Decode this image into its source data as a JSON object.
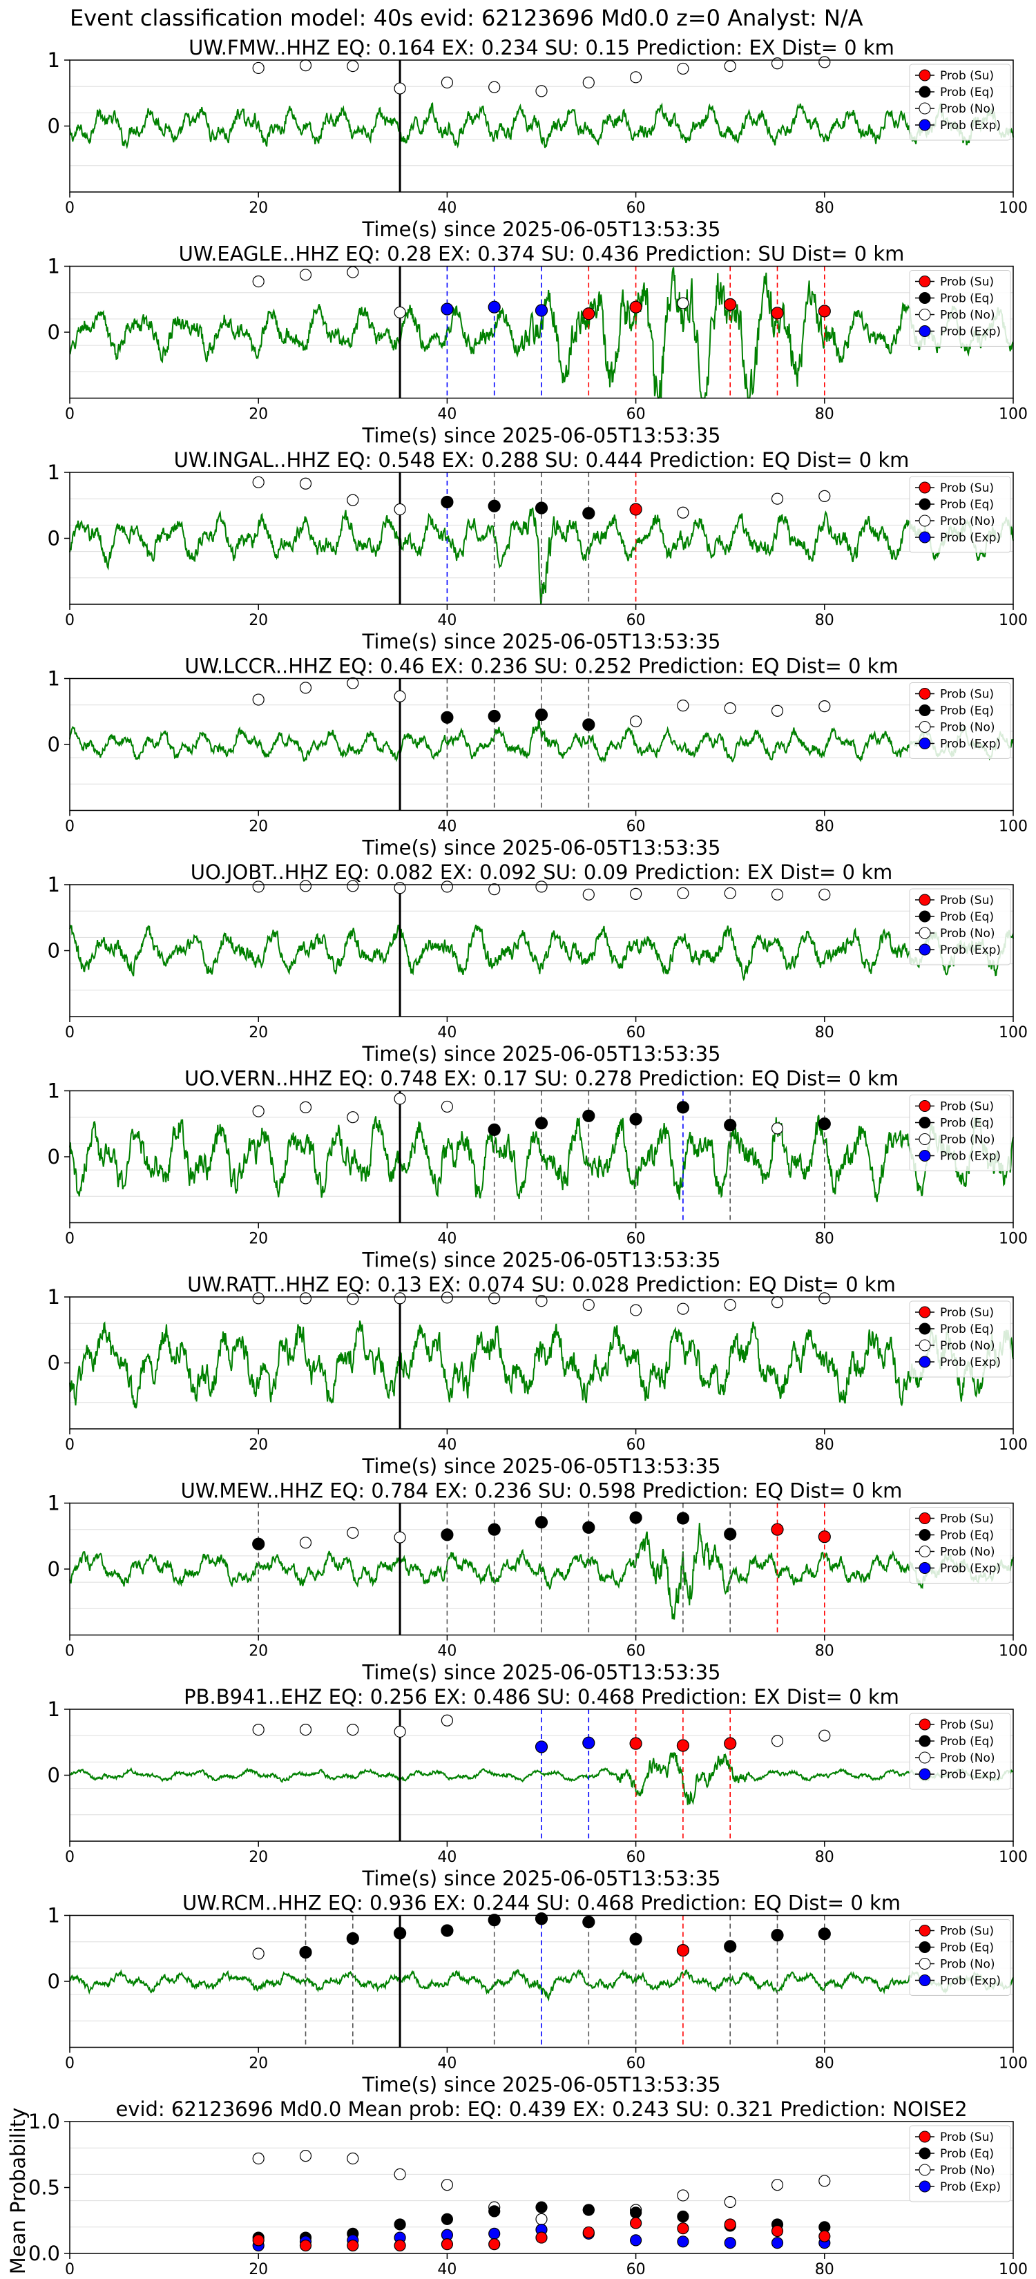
{
  "figure": {
    "suptitle": "Event classification model: 40s evid: 62123696 Md0.0 z=0 Analyst: N/A",
    "xlabel": "Time(s) since 2025-06-05T13:53:35",
    "legend_labels": [
      "Prob (Su)",
      "Prob (Eq)",
      "Prob (No)",
      "Prob (Exp)"
    ],
    "colors": {
      "waveform": "#008000",
      "su": "#ff0000",
      "eq": "#000000",
      "no": "#ffffff",
      "exp": "#0000ff",
      "pick_line": "#000000",
      "grid": "#dddddd"
    }
  },
  "chart_data": [
    {
      "type": "line",
      "title": "UW.FMW..HHZ   EQ: 0.164   EX: 0.234   SU: 0.15    Prediction: EX    Dist= 0 km",
      "xlim": [
        0,
        100
      ],
      "ylim": [
        -1,
        1
      ],
      "xticks": [
        0,
        20,
        40,
        60,
        80,
        100
      ],
      "yticks": [
        0,
        1
      ],
      "pick_time": 35,
      "x": [
        20,
        25,
        30,
        35,
        40,
        45,
        50,
        55,
        60,
        65,
        70,
        75,
        80
      ],
      "no": [
        0.88,
        0.92,
        0.91,
        0.57,
        0.66,
        0.59,
        0.53,
        0.66,
        0.74,
        0.87,
        0.91,
        0.95,
        0.97
      ],
      "markers": [],
      "win_lines": []
    },
    {
      "type": "line",
      "title": "UW.EAGLE..HHZ   EQ: 0.28   EX: 0.374   SU: 0.436    Prediction: SU    Dist= 0 km",
      "xlim": [
        0,
        100
      ],
      "ylim": [
        -1,
        1
      ],
      "xticks": [
        0,
        20,
        40,
        60,
        80,
        100
      ],
      "yticks": [
        0,
        1
      ],
      "pick_time": 35,
      "x": [
        20,
        25,
        30,
        35,
        40,
        45,
        50,
        55,
        60,
        65,
        70,
        75,
        80
      ],
      "no": [
        0.77,
        0.87,
        0.91,
        0.3,
        null,
        null,
        null,
        null,
        null,
        0.44,
        null,
        null,
        null
      ],
      "markers": [
        {
          "x": 40,
          "y": 0.35,
          "c": "exp"
        },
        {
          "x": 45,
          "y": 0.38,
          "c": "exp"
        },
        {
          "x": 50,
          "y": 0.33,
          "c": "exp"
        },
        {
          "x": 55,
          "y": 0.28,
          "c": "su"
        },
        {
          "x": 60,
          "y": 0.38,
          "c": "su"
        },
        {
          "x": 70,
          "y": 0.42,
          "c": "su"
        },
        {
          "x": 75,
          "y": 0.29,
          "c": "su"
        },
        {
          "x": 80,
          "y": 0.32,
          "c": "su"
        }
      ],
      "win_lines": [
        {
          "x": 40,
          "c": "exp"
        },
        {
          "x": 45,
          "c": "exp"
        },
        {
          "x": 50,
          "c": "exp"
        },
        {
          "x": 55,
          "c": "su"
        },
        {
          "x": 60,
          "c": "su"
        },
        {
          "x": 70,
          "c": "su"
        },
        {
          "x": 75,
          "c": "su"
        },
        {
          "x": 80,
          "c": "su"
        }
      ]
    },
    {
      "type": "line",
      "title": "UW.INGAL..HHZ   EQ: 0.548   EX: 0.288   SU: 0.444    Prediction: EQ    Dist= 0 km",
      "xlim": [
        0,
        100
      ],
      "ylim": [
        -1,
        1
      ],
      "xticks": [
        0,
        20,
        40,
        60,
        80,
        100
      ],
      "yticks": [
        0,
        1
      ],
      "pick_time": 35,
      "x": [
        20,
        25,
        30,
        35,
        40,
        45,
        50,
        55,
        60,
        65,
        70,
        75,
        80
      ],
      "no": [
        0.85,
        0.83,
        0.58,
        0.44,
        null,
        null,
        null,
        null,
        null,
        0.39,
        null,
        0.6,
        0.64
      ],
      "markers": [
        {
          "x": 40,
          "y": 0.55,
          "c": "eq"
        },
        {
          "x": 45,
          "y": 0.49,
          "c": "eq"
        },
        {
          "x": 50,
          "y": 0.46,
          "c": "eq"
        },
        {
          "x": 55,
          "y": 0.38,
          "c": "eq"
        },
        {
          "x": 60,
          "y": 0.44,
          "c": "su"
        }
      ],
      "win_lines": [
        {
          "x": 40,
          "c": "exp"
        },
        {
          "x": 45,
          "c": "eq"
        },
        {
          "x": 50,
          "c": "eq"
        },
        {
          "x": 55,
          "c": "eq"
        },
        {
          "x": 60,
          "c": "su"
        }
      ]
    },
    {
      "type": "line",
      "title": "UW.LCCR..HHZ   EQ: 0.46   EX: 0.236   SU: 0.252    Prediction: EQ    Dist= 0 km",
      "xlim": [
        0,
        100
      ],
      "ylim": [
        -1,
        1
      ],
      "xticks": [
        0,
        20,
        40,
        60,
        80,
        100
      ],
      "yticks": [
        0,
        1
      ],
      "pick_time": 35,
      "x": [
        20,
        25,
        30,
        35,
        40,
        45,
        50,
        55,
        60,
        65,
        70,
        75,
        80
      ],
      "no": [
        0.68,
        0.86,
        0.93,
        0.73,
        null,
        null,
        null,
        null,
        0.35,
        0.59,
        0.55,
        0.51,
        0.58
      ],
      "markers": [
        {
          "x": 40,
          "y": 0.41,
          "c": "eq"
        },
        {
          "x": 45,
          "y": 0.43,
          "c": "eq"
        },
        {
          "x": 50,
          "y": 0.45,
          "c": "eq"
        },
        {
          "x": 55,
          "y": 0.3,
          "c": "eq"
        }
      ],
      "win_lines": [
        {
          "x": 40,
          "c": "eq"
        },
        {
          "x": 45,
          "c": "eq"
        },
        {
          "x": 50,
          "c": "eq"
        },
        {
          "x": 55,
          "c": "eq"
        }
      ]
    },
    {
      "type": "line",
      "title": "UO.JOBT..HHZ   EQ: 0.082   EX: 0.092   SU: 0.09    Prediction: EX    Dist= 0 km",
      "xlim": [
        0,
        100
      ],
      "ylim": [
        -1,
        1
      ],
      "xticks": [
        0,
        20,
        40,
        60,
        80,
        100
      ],
      "yticks": [
        0,
        1
      ],
      "pick_time": 35,
      "x": [
        20,
        25,
        30,
        35,
        40,
        45,
        50,
        55,
        60,
        65,
        70,
        75,
        80
      ],
      "no": [
        0.97,
        0.98,
        0.98,
        0.95,
        0.97,
        0.93,
        0.97,
        0.85,
        0.86,
        0.87,
        0.87,
        0.85,
        0.85
      ],
      "markers": [],
      "win_lines": []
    },
    {
      "type": "line",
      "title": "UO.VERN..HHZ   EQ: 0.748   EX: 0.17   SU: 0.278    Prediction: EQ    Dist= 0 km",
      "xlim": [
        0,
        100
      ],
      "ylim": [
        -1,
        1
      ],
      "xticks": [
        0,
        20,
        40,
        60,
        80,
        100
      ],
      "yticks": [
        0,
        1
      ],
      "pick_time": 35,
      "x": [
        20,
        25,
        30,
        35,
        40,
        45,
        50,
        55,
        60,
        65,
        70,
        75,
        80
      ],
      "no": [
        0.69,
        0.75,
        0.6,
        0.88,
        0.76,
        null,
        null,
        null,
        null,
        null,
        null,
        0.43,
        null
      ],
      "markers": [
        {
          "x": 45,
          "y": 0.41,
          "c": "eq"
        },
        {
          "x": 50,
          "y": 0.51,
          "c": "eq"
        },
        {
          "x": 55,
          "y": 0.62,
          "c": "eq"
        },
        {
          "x": 60,
          "y": 0.57,
          "c": "eq"
        },
        {
          "x": 65,
          "y": 0.75,
          "c": "eq"
        },
        {
          "x": 70,
          "y": 0.48,
          "c": "eq"
        },
        {
          "x": 80,
          "y": 0.5,
          "c": "eq"
        }
      ],
      "win_lines": [
        {
          "x": 45,
          "c": "eq"
        },
        {
          "x": 50,
          "c": "eq"
        },
        {
          "x": 55,
          "c": "eq"
        },
        {
          "x": 60,
          "c": "eq"
        },
        {
          "x": 65,
          "c": "exp"
        },
        {
          "x": 70,
          "c": "eq"
        },
        {
          "x": 80,
          "c": "eq"
        }
      ]
    },
    {
      "type": "line",
      "title": "UW.RATT..HHZ   EQ: 0.13   EX: 0.074   SU: 0.028    Prediction: EQ    Dist= 0 km",
      "xlim": [
        0,
        100
      ],
      "ylim": [
        -1,
        1
      ],
      "xticks": [
        0,
        20,
        40,
        60,
        80,
        100
      ],
      "yticks": [
        0,
        1
      ],
      "pick_time": 35,
      "x": [
        20,
        25,
        30,
        35,
        40,
        45,
        50,
        55,
        60,
        65,
        70,
        75,
        80
      ],
      "no": [
        0.98,
        0.98,
        0.97,
        0.98,
        0.99,
        0.98,
        0.94,
        0.88,
        0.8,
        0.82,
        0.88,
        0.92,
        0.98
      ],
      "markers": [],
      "win_lines": []
    },
    {
      "type": "line",
      "title": "UW.MEW..HHZ   EQ: 0.784   EX: 0.236   SU: 0.598    Prediction: EQ    Dist= 0 km",
      "xlim": [
        0,
        100
      ],
      "ylim": [
        -1,
        1
      ],
      "xticks": [
        0,
        20,
        40,
        60,
        80,
        100
      ],
      "yticks": [
        0,
        1
      ],
      "pick_time": 35,
      "x": [
        20,
        25,
        30,
        35,
        40,
        45,
        50,
        55,
        60,
        65,
        70,
        75,
        80
      ],
      "no": [
        null,
        0.4,
        0.55,
        0.48,
        null,
        null,
        null,
        null,
        null,
        null,
        null,
        null,
        null
      ],
      "markers": [
        {
          "x": 20,
          "y": 0.38,
          "c": "eq"
        },
        {
          "x": 40,
          "y": 0.52,
          "c": "eq"
        },
        {
          "x": 45,
          "y": 0.6,
          "c": "eq"
        },
        {
          "x": 50,
          "y": 0.71,
          "c": "eq"
        },
        {
          "x": 55,
          "y": 0.63,
          "c": "eq"
        },
        {
          "x": 60,
          "y": 0.78,
          "c": "eq"
        },
        {
          "x": 65,
          "y": 0.77,
          "c": "eq"
        },
        {
          "x": 70,
          "y": 0.53,
          "c": "eq"
        },
        {
          "x": 75,
          "y": 0.6,
          "c": "su"
        },
        {
          "x": 80,
          "y": 0.49,
          "c": "su"
        }
      ],
      "win_lines": [
        {
          "x": 20,
          "c": "eq"
        },
        {
          "x": 40,
          "c": "eq"
        },
        {
          "x": 45,
          "c": "eq"
        },
        {
          "x": 50,
          "c": "eq"
        },
        {
          "x": 55,
          "c": "eq"
        },
        {
          "x": 60,
          "c": "eq"
        },
        {
          "x": 65,
          "c": "eq"
        },
        {
          "x": 70,
          "c": "eq"
        },
        {
          "x": 75,
          "c": "su"
        },
        {
          "x": 80,
          "c": "su"
        }
      ]
    },
    {
      "type": "line",
      "title": "PB.B941..EHZ   EQ: 0.256   EX: 0.486   SU: 0.468    Prediction: EX    Dist= 0 km",
      "xlim": [
        0,
        100
      ],
      "ylim": [
        -1,
        1
      ],
      "xticks": [
        0,
        20,
        40,
        60,
        80,
        100
      ],
      "yticks": [
        0,
        1
      ],
      "pick_time": 35,
      "x": [
        20,
        25,
        30,
        35,
        40,
        45,
        50,
        55,
        60,
        65,
        70,
        75,
        80
      ],
      "no": [
        0.69,
        0.69,
        0.69,
        0.66,
        0.83,
        null,
        null,
        null,
        null,
        null,
        null,
        0.52,
        0.6
      ],
      "markers": [
        {
          "x": 50,
          "y": 0.43,
          "c": "exp"
        },
        {
          "x": 55,
          "y": 0.49,
          "c": "exp"
        },
        {
          "x": 60,
          "y": 0.48,
          "c": "su"
        },
        {
          "x": 65,
          "y": 0.45,
          "c": "su"
        },
        {
          "x": 70,
          "y": 0.48,
          "c": "su"
        }
      ],
      "win_lines": [
        {
          "x": 50,
          "c": "exp"
        },
        {
          "x": 55,
          "c": "exp"
        },
        {
          "x": 60,
          "c": "su"
        },
        {
          "x": 65,
          "c": "su"
        },
        {
          "x": 70,
          "c": "su"
        }
      ]
    },
    {
      "type": "line",
      "title": "UW.RCM..HHZ   EQ: 0.936   EX: 0.244   SU: 0.468    Prediction: EQ    Dist= 0 km",
      "xlim": [
        0,
        100
      ],
      "ylim": [
        -1,
        1
      ],
      "xticks": [
        0,
        20,
        40,
        60,
        80,
        100
      ],
      "yticks": [
        0,
        1
      ],
      "pick_time": 35,
      "x": [
        20,
        25,
        30,
        35,
        40,
        45,
        50,
        55,
        60,
        65,
        70,
        75,
        80
      ],
      "no": [
        0.42,
        null,
        null,
        null,
        null,
        null,
        null,
        null,
        null,
        null,
        null,
        null,
        null
      ],
      "markers": [
        {
          "x": 25,
          "y": 0.44,
          "c": "eq"
        },
        {
          "x": 30,
          "y": 0.65,
          "c": "eq"
        },
        {
          "x": 35,
          "y": 0.73,
          "c": "eq"
        },
        {
          "x": 40,
          "y": 0.77,
          "c": "eq"
        },
        {
          "x": 45,
          "y": 0.93,
          "c": "eq"
        },
        {
          "x": 50,
          "y": 0.95,
          "c": "eq"
        },
        {
          "x": 55,
          "y": 0.9,
          "c": "eq"
        },
        {
          "x": 60,
          "y": 0.64,
          "c": "eq"
        },
        {
          "x": 65,
          "y": 0.47,
          "c": "su"
        },
        {
          "x": 70,
          "y": 0.53,
          "c": "eq"
        },
        {
          "x": 75,
          "y": 0.7,
          "c": "eq"
        },
        {
          "x": 80,
          "y": 0.72,
          "c": "eq"
        }
      ],
      "win_lines": [
        {
          "x": 25,
          "c": "eq"
        },
        {
          "x": 30,
          "c": "eq"
        },
        {
          "x": 45,
          "c": "eq"
        },
        {
          "x": 50,
          "c": "exp"
        },
        {
          "x": 55,
          "c": "eq"
        },
        {
          "x": 60,
          "c": "eq"
        },
        {
          "x": 65,
          "c": "su"
        },
        {
          "x": 70,
          "c": "eq"
        },
        {
          "x": 75,
          "c": "eq"
        },
        {
          "x": 80,
          "c": "eq"
        }
      ]
    },
    {
      "type": "scatter",
      "title": "evid: 62123696   Md0.0    Mean prob:    EQ: 0.439   EX: 0.243   SU: 0.321    Prediction: NOISE2",
      "ylabel": "Mean Probability",
      "xlim": [
        0,
        100
      ],
      "ylim": [
        0,
        1
      ],
      "xticks": [
        0,
        20,
        40,
        60,
        80,
        100
      ],
      "yticks": [
        0.0,
        0.5,
        1.0
      ],
      "ytick_labels": [
        "0.0",
        "0.5",
        "1.0"
      ],
      "x": [
        20,
        25,
        30,
        35,
        40,
        45,
        50,
        55,
        60,
        65,
        70,
        75,
        80
      ],
      "series": [
        {
          "name": "Prob (No)",
          "c": "no",
          "values": [
            0.72,
            0.74,
            0.72,
            0.6,
            0.52,
            0.35,
            0.26,
            0.33,
            0.33,
            0.44,
            0.39,
            0.52,
            0.55
          ]
        },
        {
          "name": "Prob (Eq)",
          "c": "eq",
          "values": [
            0.12,
            0.12,
            0.15,
            0.22,
            0.26,
            0.32,
            0.35,
            0.33,
            0.31,
            0.28,
            0.21,
            0.22,
            0.2
          ]
        },
        {
          "name": "Prob (Exp)",
          "c": "exp",
          "values": [
            0.06,
            0.09,
            0.1,
            0.12,
            0.14,
            0.15,
            0.18,
            0.15,
            0.1,
            0.09,
            0.08,
            0.08,
            0.08
          ]
        },
        {
          "name": "Prob (Su)",
          "c": "su",
          "values": [
            0.1,
            0.06,
            0.06,
            0.06,
            0.07,
            0.07,
            0.12,
            0.16,
            0.23,
            0.19,
            0.22,
            0.17,
            0.13
          ]
        }
      ]
    }
  ]
}
